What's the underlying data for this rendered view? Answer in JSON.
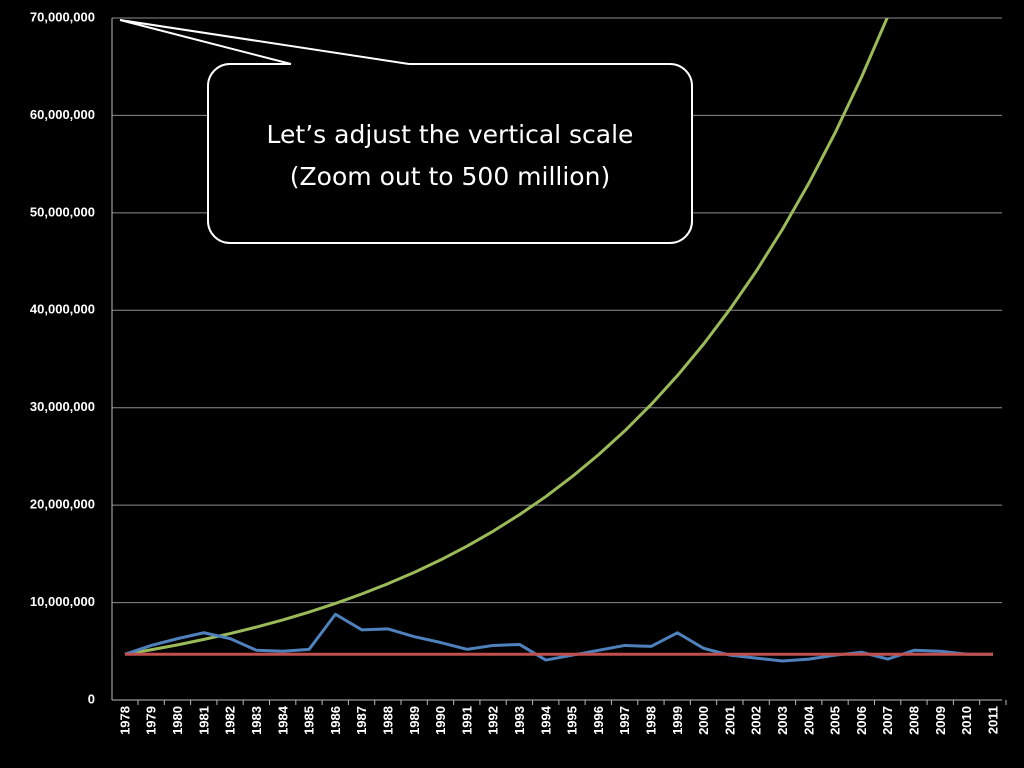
{
  "chart_data": {
    "type": "line",
    "annotation": [
      "Let’s adjust the vertical scale",
      "(Zoom out to 500 million)"
    ],
    "categories": [
      "1978",
      "1979",
      "1980",
      "1981",
      "1982",
      "1983",
      "1984",
      "1985",
      "1986",
      "1987",
      "1988",
      "1989",
      "1990",
      "1991",
      "1992",
      "1993",
      "1994",
      "1995",
      "1996",
      "1997",
      "1998",
      "1999",
      "2000",
      "2001",
      "2002",
      "2003",
      "2004",
      "2005",
      "2006",
      "2007",
      "2008",
      "2009",
      "2010",
      "2011"
    ],
    "series": [
      {
        "color": "#9bbb59",
        "values": [
          4700000,
          5160000,
          5660000,
          6220000,
          6820000,
          7490000,
          8220000,
          9030000,
          9910000,
          10880000,
          11940000,
          13100000,
          14380000,
          15790000,
          17330000,
          19030000,
          20880000,
          22930000,
          25170000,
          27620000,
          30320000,
          33290000,
          36540000,
          40110000,
          44020000,
          48330000,
          53050000,
          58230000,
          63920000,
          70160000,
          null,
          null,
          null,
          null
        ]
      },
      {
        "color": "#4f81bd",
        "values": [
          4700000,
          5600000,
          6300000,
          6900000,
          6300000,
          5100000,
          5000000,
          5200000,
          8800000,
          7200000,
          7300000,
          6500000,
          5900000,
          5200000,
          5600000,
          5700000,
          4100000,
          4600000,
          5100000,
          5600000,
          5500000,
          6900000,
          5300000,
          4600000,
          4300000,
          4000000,
          4200000,
          4600000,
          4900000,
          4200000,
          5100000,
          5000000,
          4700000,
          4700000
        ]
      },
      {
        "color": "#c0504d",
        "values": [
          4700000,
          4700000,
          4700000,
          4700000,
          4700000,
          4700000,
          4700000,
          4700000,
          4700000,
          4700000,
          4700000,
          4700000,
          4700000,
          4700000,
          4700000,
          4700000,
          4700000,
          4700000,
          4700000,
          4700000,
          4700000,
          4700000,
          4700000,
          4700000,
          4700000,
          4700000,
          4700000,
          4700000,
          4700000,
          4700000,
          4700000,
          4700000,
          4700000,
          4700000
        ]
      }
    ],
    "ylim": [
      0,
      70000000
    ],
    "yticks": [
      0,
      {
        "value": 10000000,
        "label": "10,000,000"
      },
      {
        "value": 20000000,
        "label": "20,000,000"
      },
      {
        "value": 30000000,
        "label": "30,000,000"
      },
      {
        "value": 40000000,
        "label": "40,000,000"
      },
      {
        "value": 50000000,
        "label": "50,000,000"
      },
      {
        "value": 60000000,
        "label": "60,000,000"
      },
      {
        "value": 70000000,
        "label": "70,000,000"
      }
    ],
    "grid": true
  }
}
